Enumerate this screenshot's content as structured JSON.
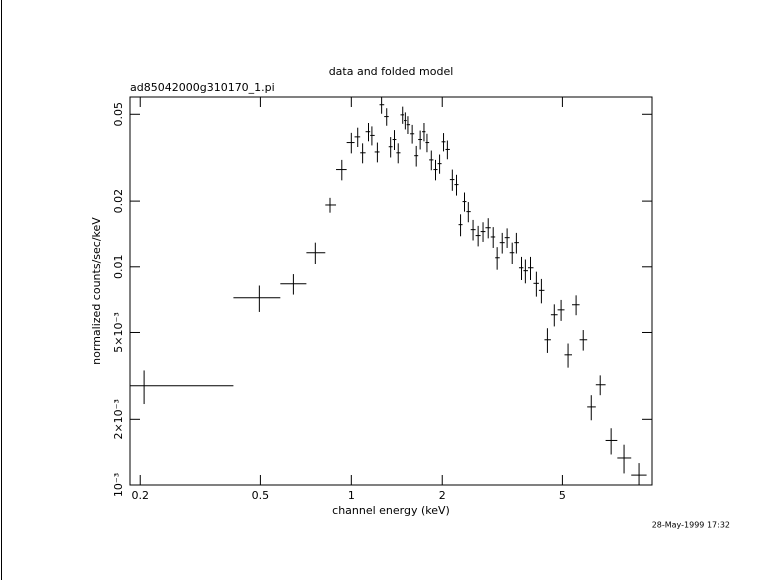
{
  "chart_data": {
    "type": "errorbar",
    "title": "data and folded model",
    "subtitle": "ad85042000g310170_1.pi",
    "x_label": "channel energy (keV)",
    "y_label": "normalized counts/sec/keV",
    "footer": "28-May-1999 17:32",
    "xscale": "log",
    "yscale": "log",
    "xlim": [
      0.185,
      9.9
    ],
    "ylim": [
      0.001,
      0.06
    ],
    "xticks": [
      0.2,
      0.5,
      1,
      2,
      5
    ],
    "yticks": [
      {
        "value": 0.001,
        "label": "10⁻³"
      },
      {
        "value": 0.002,
        "label": "2×10⁻³"
      },
      {
        "value": 0.005,
        "label": "5×10⁻³"
      },
      0.01,
      0.02,
      0.05
    ],
    "color": "#000000",
    "x": [
      0.206,
      0.496,
      0.643,
      0.76,
      0.85,
      0.93,
      1.0,
      1.05,
      1.09,
      1.14,
      1.17,
      1.22,
      1.26,
      1.31,
      1.35,
      1.39,
      1.43,
      1.48,
      1.51,
      1.54,
      1.59,
      1.64,
      1.69,
      1.74,
      1.78,
      1.84,
      1.9,
      1.96,
      2.02,
      2.08,
      2.16,
      2.23,
      2.3,
      2.37,
      2.44,
      2.53,
      2.63,
      2.73,
      2.84,
      2.95,
      3.04,
      3.16,
      3.28,
      3.41,
      3.52,
      3.66,
      3.77,
      3.92,
      4.1,
      4.26,
      4.46,
      4.7,
      4.95,
      5.22,
      5.55,
      5.86,
      6.23,
      6.67,
      7.25,
      8.0,
      8.97
    ],
    "bin_edges": [
      0.185,
      0.407,
      0.582,
      0.71,
      0.82,
      0.89,
      0.965,
      1.025,
      1.07,
      1.115,
      1.155,
      1.195,
      1.24,
      1.285,
      1.33,
      1.37,
      1.41,
      1.455,
      1.495,
      1.525,
      1.565,
      1.615,
      1.665,
      1.715,
      1.76,
      1.81,
      1.87,
      1.93,
      1.99,
      2.05,
      2.12,
      2.195,
      2.265,
      2.335,
      2.405,
      2.485,
      2.58,
      2.68,
      2.78,
      2.895,
      2.995,
      3.1,
      3.22,
      3.345,
      3.465,
      3.59,
      3.715,
      3.845,
      4.01,
      4.18,
      4.36,
      4.58,
      4.82,
      5.08,
      5.38,
      5.7,
      6.04,
      6.45,
      6.95,
      7.6,
      8.45,
      9.5
    ],
    "values": [
      0.00285,
      0.00721,
      0.00836,
      0.0116,
      0.0192,
      0.0279,
      0.0371,
      0.0394,
      0.0333,
      0.0416,
      0.04,
      0.0336,
      0.0553,
      0.0488,
      0.0355,
      0.0383,
      0.0333,
      0.0497,
      0.0468,
      0.0448,
      0.0407,
      0.0323,
      0.0383,
      0.0416,
      0.0371,
      0.0309,
      0.0279,
      0.0297,
      0.0374,
      0.0345,
      0.0251,
      0.0238,
      0.0156,
      0.0199,
      0.0179,
      0.0148,
      0.0139,
      0.0145,
      0.0151,
      0.0137,
      0.011,
      0.0129,
      0.0136,
      0.0116,
      0.0129,
      0.0099,
      0.0096,
      0.0099,
      0.0084,
      0.0078,
      0.00463,
      0.00603,
      0.00635,
      0.00395,
      0.0067,
      0.00463,
      0.00228,
      0.00288,
      0.0016,
      0.00133,
      0.00111
    ],
    "errors": [
      0.0005,
      0.001,
      0.0009,
      0.0013,
      0.0015,
      0.003,
      0.004,
      0.004,
      0.0035,
      0.004,
      0.004,
      0.0035,
      0.005,
      0.0045,
      0.0038,
      0.004,
      0.0035,
      0.0045,
      0.0042,
      0.0042,
      0.004,
      0.0035,
      0.0038,
      0.004,
      0.0036,
      0.0032,
      0.003,
      0.003,
      0.0036,
      0.0034,
      0.0028,
      0.0026,
      0.0018,
      0.002,
      0.0019,
      0.0016,
      0.0015,
      0.0015,
      0.0016,
      0.0015,
      0.0013,
      0.0014,
      0.0014,
      0.0013,
      0.0014,
      0.0012,
      0.0012,
      0.0012,
      0.0011,
      0.001,
      0.0006,
      0.0007,
      0.0007,
      0.0005,
      0.0007,
      0.0005,
      0.0003,
      0.0003,
      0.00022,
      0.0002,
      0.00015
    ]
  }
}
